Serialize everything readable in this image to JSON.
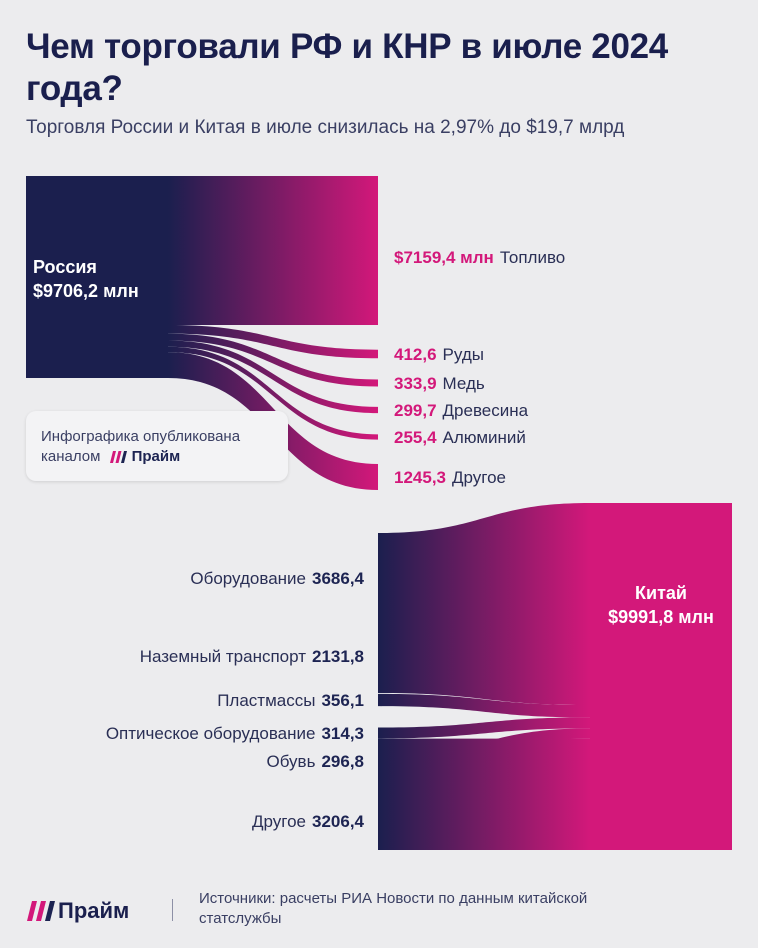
{
  "header": {
    "title": "Чем торговали РФ и КНР в июле 2024 года?",
    "subtitle": "Торговля России и Китая в июле снизилась на 2,97% до $19,7 млрд"
  },
  "chart_data": {
    "type": "sankey",
    "title": "Чем торговали РФ и КНР в июле 2024 года?",
    "subtitle": "Торговля России и Китая в июле снизилась на 2,97% до $19,7 млрд",
    "unit": "млн $",
    "flows": [
      {
        "source": "Россия",
        "source_total": 9706.2,
        "source_label": "$9706,2 млн",
        "items": [
          {
            "name": "Топливо",
            "value": 7159.4,
            "value_label": "$7159,4 млн"
          },
          {
            "name": "Руды",
            "value": 412.6,
            "value_label": "412,6"
          },
          {
            "name": "Медь",
            "value": 333.9,
            "value_label": "333,9"
          },
          {
            "name": "Древесина",
            "value": 299.7,
            "value_label": "299,7"
          },
          {
            "name": "Алюминий",
            "value": 255.4,
            "value_label": "255,4"
          },
          {
            "name": "Другое",
            "value": 1245.3,
            "value_label": "1245,3"
          }
        ]
      },
      {
        "target": "Китай",
        "target_total": 9991.8,
        "target_label": "$9991,8 млн",
        "items": [
          {
            "name": "Оборудование",
            "value": 3686.4,
            "value_label": "3686,4"
          },
          {
            "name": "Наземный транспорт",
            "value": 2131.8,
            "value_label": "2131,8"
          },
          {
            "name": "Пластмассы",
            "value": 356.1,
            "value_label": "356,1"
          },
          {
            "name": "Оптическое оборудование",
            "value": 314.3,
            "value_label": "314,3"
          },
          {
            "name": "Обувь",
            "value": 296.8,
            "value_label": "296,8"
          },
          {
            "name": "Другое",
            "value": 3206.4,
            "value_label": "3206,4"
          }
        ]
      }
    ],
    "colors": {
      "dark": "#1b1f4e",
      "pink": "#d3187a"
    }
  },
  "badge": {
    "line1": "Инфографика опубликована",
    "line2": "каналом",
    "brand": "Прайм"
  },
  "footer": {
    "brand": "Прайм",
    "source": "Источники: расчеты РИА Новости по данным китайской статслужбы"
  }
}
